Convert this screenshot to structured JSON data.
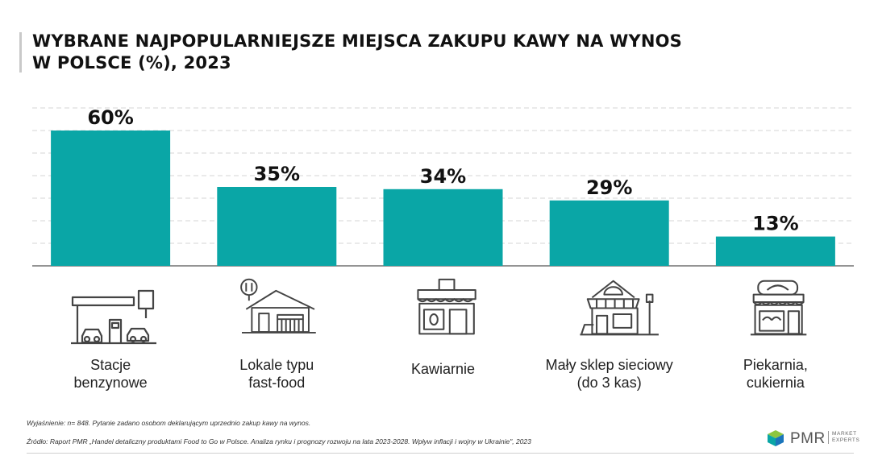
{
  "title_lines": [
    "WYBRANE NAJPOPULARNIEJSZE MIEJSCA ZAKUPU KAWY NA WYNOS",
    "W POLSCE (%), 2023"
  ],
  "chart_data": {
    "type": "bar",
    "title": "WYBRANE NAJPOPULARNIEJSZE MIEJSCA ZAKUPU KAWY NA WYNOS W POLSCE (%), 2023",
    "categories": [
      [
        "Stacje",
        "benzynowe"
      ],
      [
        "Lokale typu",
        "fast-food"
      ],
      [
        "Kawiarnie"
      ],
      [
        "Mały sklep sieciowy",
        "(do 3 kas)"
      ],
      [
        "Piekarnia,",
        "cukiernia"
      ]
    ],
    "values": [
      60,
      35,
      34,
      29,
      13
    ],
    "data_labels": [
      "60%",
      "35%",
      "34%",
      "29%",
      "13%"
    ],
    "ylim": [
      0,
      70
    ],
    "grid": true,
    "bar_color": "#0aa6a6"
  },
  "icons": [
    "gas-station-icon",
    "fast-food-restaurant-icon",
    "cafe-icon",
    "small-shop-icon",
    "bakery-icon"
  ],
  "footnotes": {
    "explanation": "Wyjaśnienie: n= 848. Pytanie zadano osobom deklarującym uprzednio zakup kawy na wynos.",
    "source": "Źródło: Raport PMR „Handel detaliczny produktami Food to Go w Polsce. Analiza rynku i prognozy rozwoju na lata 2023-2028. Wpływ inflacji i wojny w Ukrainie\", 2023"
  },
  "logo": {
    "name": "PMR",
    "sub_lines": [
      "MARKET",
      "EXPERTS"
    ]
  }
}
